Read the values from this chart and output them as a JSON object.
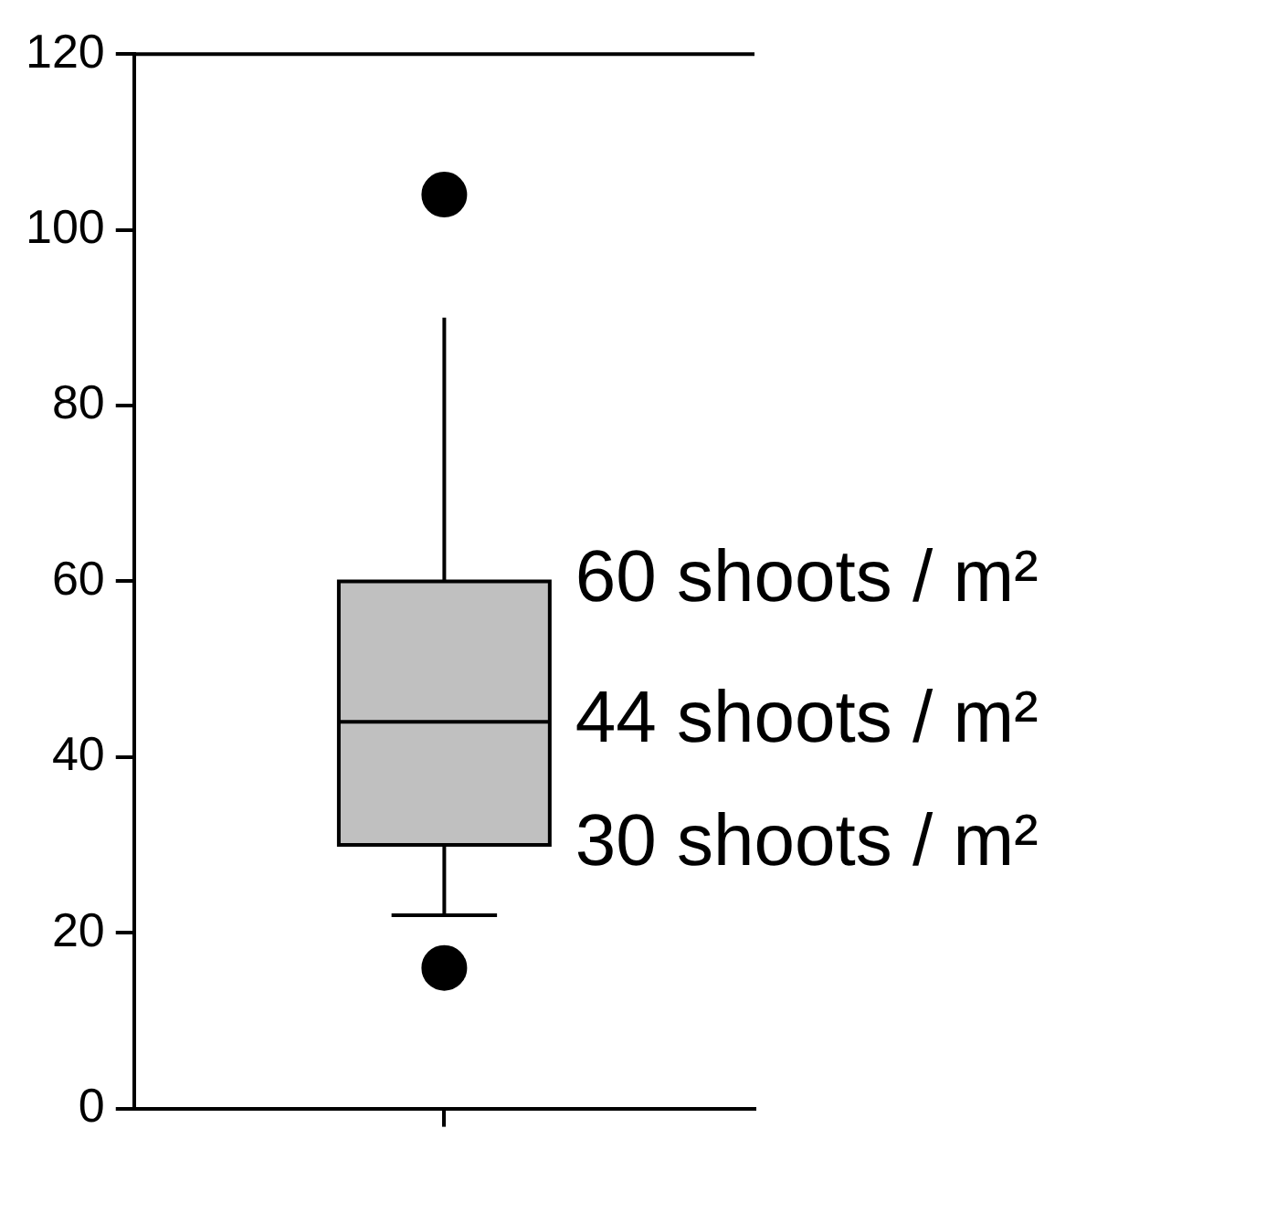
{
  "chart_data": {
    "type": "box",
    "categories": [
      null
    ],
    "color": "#c0c0c0",
    "boxes": [
      {
        "low": 22,
        "q1": 30,
        "median": 44,
        "q3": 60,
        "high": 90,
        "outliers": [
          104,
          16
        ]
      }
    ],
    "ylim": [
      0,
      120
    ],
    "yticks": [
      0,
      20,
      40,
      60,
      80,
      100,
      120
    ],
    "grid": false,
    "legend": false,
    "annotations": [
      "60 shoots / m²",
      "44 shoots / m²",
      "30 shoots / m²"
    ]
  }
}
